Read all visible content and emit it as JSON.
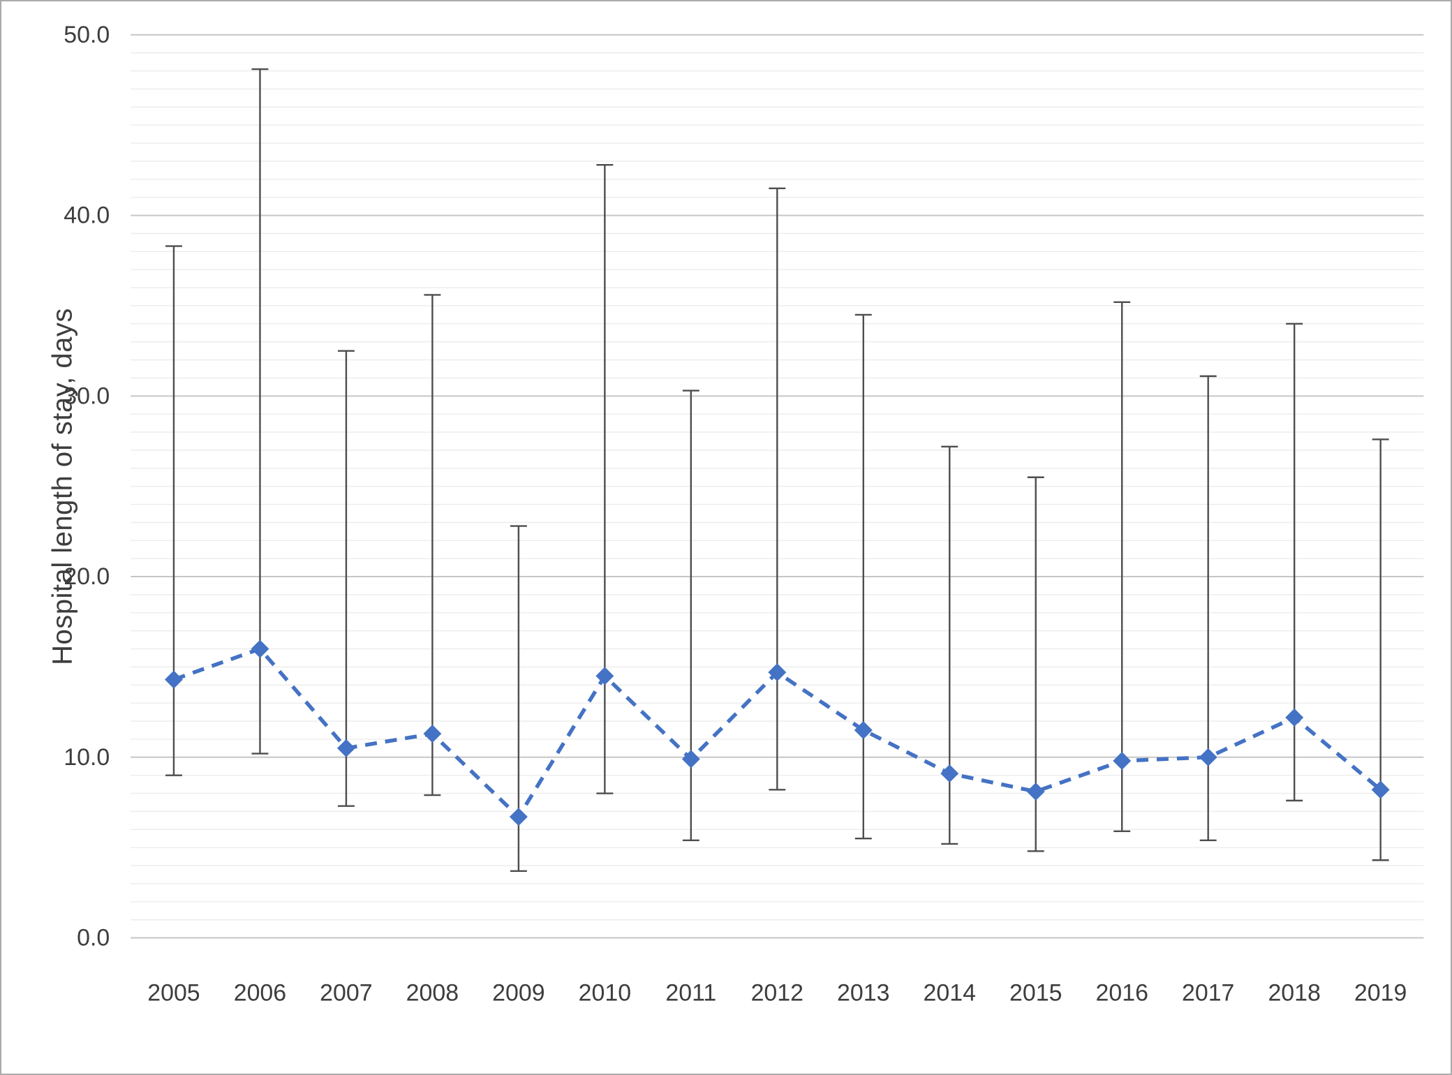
{
  "chart_data": {
    "type": "line",
    "title": "",
    "ylabel": "Hospital length of stay, days",
    "xlabel": "",
    "ylim": [
      0,
      50
    ],
    "major_step": 10,
    "minor_step": 1,
    "yticks": [
      "0.0",
      "10.0",
      "20.0",
      "30.0",
      "40.0",
      "50.0"
    ],
    "categories": [
      "2005",
      "2006",
      "2007",
      "2008",
      "2009",
      "2010",
      "2011",
      "2012",
      "2013",
      "2014",
      "2015",
      "2016",
      "2017",
      "2018",
      "2019"
    ],
    "series": [
      {
        "name": "Hospital length of stay",
        "marker": "diamond",
        "line_style": "dashed",
        "values": [
          14.3,
          16.0,
          10.5,
          11.3,
          6.7,
          14.5,
          9.9,
          14.7,
          11.5,
          9.1,
          8.1,
          9.8,
          10.0,
          12.2,
          8.2
        ],
        "error_low": [
          9.0,
          10.2,
          7.3,
          7.9,
          3.7,
          8.0,
          5.4,
          8.2,
          5.5,
          5.2,
          4.8,
          5.9,
          5.4,
          7.6,
          4.3
        ],
        "error_high": [
          38.3,
          48.1,
          32.5,
          35.6,
          22.8,
          42.8,
          30.3,
          41.5,
          34.5,
          27.2,
          25.5,
          35.2,
          31.1,
          34.0,
          27.6
        ]
      }
    ],
    "legend": "none",
    "grid": "on",
    "style": {
      "line_color": "#4472C4",
      "error_color": "#4d4d4d",
      "grid_major": "#c6c6c6",
      "grid_minor": "#ececec",
      "text_color": "#3d3d3d"
    }
  }
}
